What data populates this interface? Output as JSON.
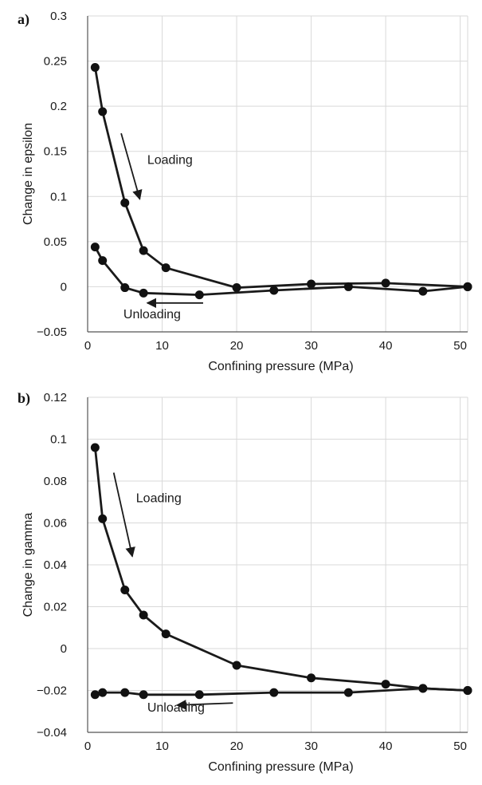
{
  "chart_data": [
    {
      "type": "line",
      "panel_label": "a)",
      "xlabel": "Confining pressure (MPa)",
      "ylabel": "Change in epsilon",
      "xlim": [
        0,
        51
      ],
      "ylim": [
        -0.05,
        0.3
      ],
      "xticks": [
        0,
        10,
        20,
        30,
        40,
        50
      ],
      "yticks": [
        -0.05,
        0,
        0.05,
        0.1,
        0.15,
        0.2,
        0.25,
        0.3
      ],
      "ytick_labels": [
        "−0.05",
        "0",
        "0.05",
        "0.1",
        "0.15",
        "0.2",
        "0.25",
        "0.3"
      ],
      "grid": true,
      "series": [
        {
          "x": [
            1,
            2,
            5,
            7.5,
            10.5,
            20,
            30,
            40,
            51
          ],
          "y": [
            0.243,
            0.194,
            0.093,
            0.04,
            0.021,
            -0.001,
            0.003,
            0.004,
            0
          ]
        },
        {
          "x": [
            1,
            2,
            5,
            7.5,
            15,
            25,
            35,
            45,
            51
          ],
          "y": [
            0.044,
            0.029,
            -0.001,
            -0.007,
            -0.009,
            -0.004,
            0.0,
            -0.005,
            0
          ]
        }
      ],
      "annotations": [
        {
          "text": "Loading",
          "x": 8.0,
          "y": 0.136
        },
        {
          "text": "Unloading",
          "x": 4.8,
          "y": -0.035
        }
      ],
      "arrows": [
        {
          "from": [
            4.5,
            0.17
          ],
          "to": [
            7.0,
            0.097
          ]
        },
        {
          "from": [
            15.5,
            -0.018
          ],
          "to": [
            8.0,
            -0.018
          ]
        }
      ]
    },
    {
      "type": "line",
      "panel_label": "b)",
      "xlabel": "Confining pressure (MPa)",
      "ylabel": "Change in gamma",
      "xlim": [
        0,
        51
      ],
      "ylim": [
        -0.04,
        0.12
      ],
      "xticks": [
        0,
        10,
        20,
        30,
        40,
        50
      ],
      "yticks": [
        -0.04,
        -0.02,
        0,
        0.02,
        0.04,
        0.06,
        0.08,
        0.1,
        0.12
      ],
      "ytick_labels": [
        "−0.04",
        "−0.02",
        "0",
        "0.02",
        "0.04",
        "0.06",
        "0.08",
        "0.1",
        "0.12"
      ],
      "grid": true,
      "series": [
        {
          "x": [
            1,
            2,
            5,
            7.5,
            10.5,
            20,
            30,
            40,
            45,
            51
          ],
          "y": [
            0.096,
            0.062,
            0.028,
            0.016,
            0.007,
            -0.008,
            -0.014,
            -0.017,
            -0.019,
            -0.02
          ]
        },
        {
          "x": [
            1,
            2,
            5,
            7.5,
            15,
            25,
            35,
            45,
            51
          ],
          "y": [
            -0.022,
            -0.021,
            -0.021,
            -0.022,
            -0.022,
            -0.021,
            -0.021,
            -0.019,
            -0.02
          ]
        }
      ],
      "annotations": [
        {
          "text": "Loading",
          "x": 6.5,
          "y": 0.07
        },
        {
          "text": "Unloading",
          "x": 8.0,
          "y": -0.03
        }
      ],
      "arrows": [
        {
          "from": [
            3.5,
            0.084
          ],
          "to": [
            6.0,
            0.044
          ]
        },
        {
          "from": [
            19.5,
            -0.026
          ],
          "to": [
            12.0,
            -0.027
          ]
        }
      ]
    }
  ]
}
